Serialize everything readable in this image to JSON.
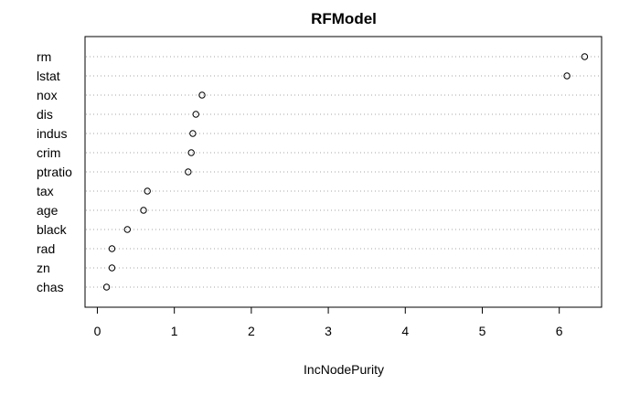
{
  "chart_data": {
    "type": "scatter",
    "title": "RFModel",
    "xlabel": "IncNodePurity",
    "ylabel": "",
    "categories": [
      "rm",
      "lstat",
      "nox",
      "dis",
      "indus",
      "crim",
      "ptratio",
      "tax",
      "age",
      "black",
      "rad",
      "zn",
      "chas"
    ],
    "values": [
      6.33,
      6.1,
      1.36,
      1.28,
      1.24,
      1.22,
      1.18,
      0.65,
      0.6,
      0.39,
      0.19,
      0.19,
      0.12
    ],
    "xlim": [
      -0.16,
      6.55
    ],
    "x_ticks": [
      0,
      1,
      2,
      3,
      4,
      5,
      6
    ],
    "x_tick_labels": [
      "0",
      "1",
      "2",
      "3",
      "4",
      "5",
      "6"
    ],
    "grid": "dotted horizontal lines per category",
    "legend": "none",
    "marker": "open-circle"
  }
}
